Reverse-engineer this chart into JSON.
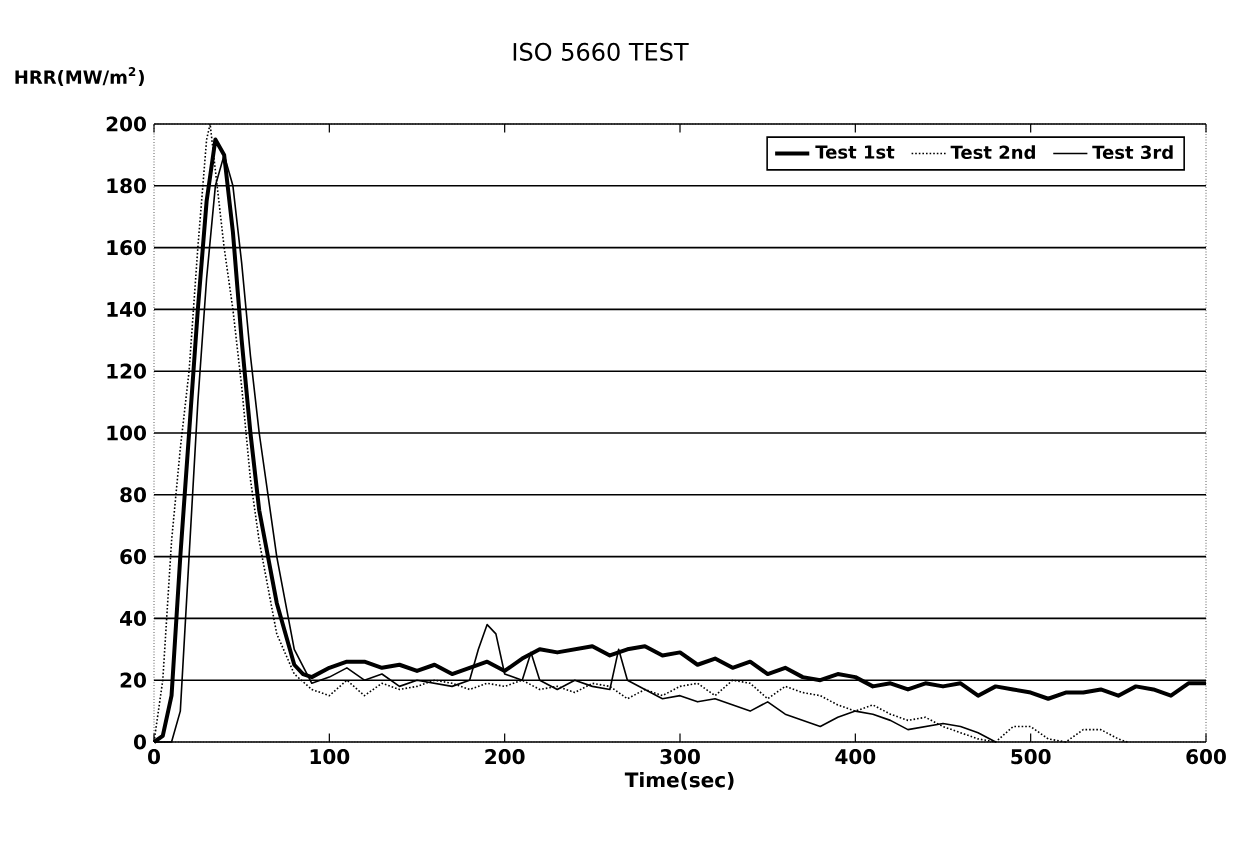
{
  "chart_data": {
    "type": "line",
    "title": "ISO 5660 TEST",
    "ylabel": "HRR(MW/m$^{2}$)",
    "xlabel": "Time(sec)",
    "xlim": [
      0,
      600
    ],
    "ylim": [
      0,
      200
    ],
    "xticks": [
      0,
      100,
      200,
      300,
      400,
      500,
      600
    ],
    "yticks": [
      0,
      20,
      40,
      60,
      80,
      100,
      120,
      140,
      160,
      180,
      200
    ],
    "grid": "y",
    "legend": "top right",
    "marker": "none",
    "series": [
      {
        "name": "Test 1st",
        "color": "#000000",
        "line_style": "solid",
        "x": [
          0,
          5,
          10,
          15,
          20,
          25,
          30,
          35,
          40,
          45,
          50,
          55,
          60,
          70,
          80,
          85,
          90,
          100,
          110,
          120,
          130,
          140,
          150,
          160,
          170,
          180,
          190,
          200,
          210,
          220,
          230,
          240,
          250,
          260,
          270,
          280,
          290,
          300,
          310,
          320,
          330,
          340,
          350,
          360,
          370,
          380,
          390,
          400,
          410,
          420,
          430,
          440,
          450,
          460,
          470,
          480,
          490,
          500,
          510,
          520,
          530,
          540,
          550,
          560,
          570,
          580,
          590,
          600
        ],
        "values": [
          0,
          2,
          15,
          60,
          100,
          140,
          175,
          195,
          190,
          165,
          130,
          100,
          75,
          45,
          25,
          22,
          21,
          24,
          26,
          26,
          24,
          25,
          23,
          25,
          22,
          24,
          26,
          23,
          27,
          30,
          29,
          30,
          31,
          28,
          30,
          31,
          28,
          29,
          25,
          27,
          24,
          26,
          22,
          24,
          21,
          20,
          22,
          21,
          18,
          19,
          17,
          19,
          18,
          19,
          15,
          18,
          17,
          16,
          14,
          16,
          16,
          17,
          15,
          18,
          17,
          15,
          19,
          19
        ]
      },
      {
        "name": "Test 2nd",
        "color": "#000000",
        "line_style": "dotted",
        "x": [
          0,
          5,
          10,
          15,
          20,
          25,
          30,
          32,
          35,
          40,
          45,
          50,
          55,
          60,
          70,
          80,
          90,
          100,
          110,
          120,
          130,
          140,
          150,
          160,
          170,
          180,
          190,
          200,
          210,
          220,
          230,
          240,
          250,
          260,
          270,
          280,
          290,
          300,
          310,
          320,
          330,
          340,
          350,
          360,
          370,
          380,
          390,
          400,
          410,
          420,
          430,
          440,
          450,
          460,
          470,
          480,
          490,
          500,
          510,
          520,
          530,
          540,
          550,
          555
        ],
        "values": [
          0,
          20,
          65,
          95,
          120,
          160,
          195,
          200,
          185,
          160,
          140,
          115,
          85,
          65,
          35,
          22,
          17,
          15,
          20,
          15,
          19,
          17,
          18,
          20,
          19,
          17,
          19,
          18,
          20,
          17,
          18,
          16,
          19,
          18,
          14,
          17,
          15,
          18,
          19,
          15,
          20,
          19,
          14,
          18,
          16,
          15,
          12,
          10,
          12,
          9,
          7,
          8,
          5,
          3,
          1,
          0,
          5,
          5,
          1,
          0,
          4,
          4,
          1,
          0
        ]
      },
      {
        "name": "Test 3rd",
        "color": "#000000",
        "line_style": "solid",
        "x": [
          0,
          10,
          15,
          20,
          25,
          30,
          35,
          40,
          45,
          50,
          55,
          60,
          70,
          80,
          90,
          100,
          110,
          120,
          130,
          140,
          150,
          160,
          170,
          180,
          185,
          190,
          195,
          200,
          210,
          215,
          220,
          230,
          240,
          250,
          260,
          265,
          270,
          280,
          290,
          300,
          310,
          320,
          330,
          340,
          350,
          360,
          370,
          380,
          390,
          400,
          410,
          420,
          430,
          440,
          450,
          460,
          470,
          480
        ],
        "values": [
          0,
          0,
          10,
          60,
          110,
          150,
          180,
          190,
          180,
          155,
          125,
          100,
          60,
          30,
          19,
          21,
          24,
          20,
          22,
          18,
          20,
          19,
          18,
          20,
          30,
          38,
          35,
          22,
          20,
          29,
          20,
          17,
          20,
          18,
          17,
          30,
          20,
          17,
          14,
          15,
          13,
          14,
          12,
          10,
          13,
          9,
          7,
          5,
          8,
          10,
          9,
          7,
          4,
          5,
          6,
          5,
          3,
          0
        ]
      }
    ]
  }
}
